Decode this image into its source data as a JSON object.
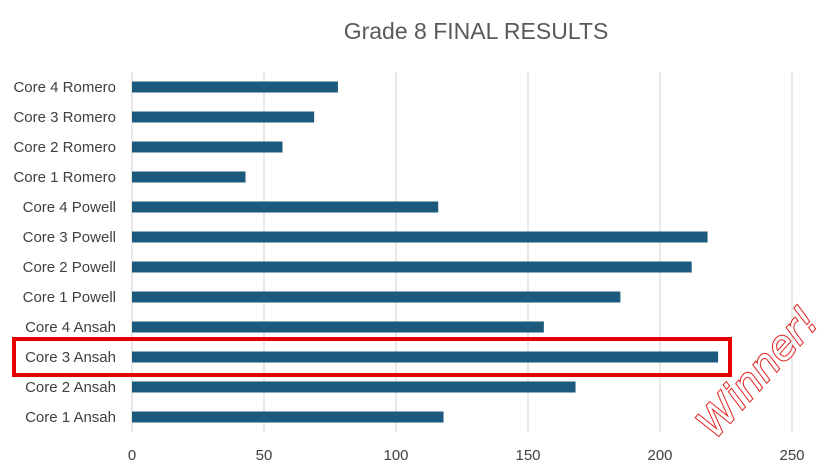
{
  "chart_data": {
    "type": "bar",
    "orientation": "horizontal",
    "title": "Grade 8 FINAL RESULTS",
    "xlim": [
      0,
      250
    ],
    "xticks": [
      0,
      50,
      100,
      150,
      200,
      250
    ],
    "grid": true,
    "categories": [
      "Core 4 Romero",
      "Core 3 Romero",
      "Core 2 Romero",
      "Core 1 Romero",
      "Core 4 Powell",
      "Core 3 Powell",
      "Core 2 Powell",
      "Core 1 Powell",
      "Core 4 Ansah",
      "Core 3 Ansah",
      "Core 2 Ansah",
      "Core 1 Ansah"
    ],
    "values": [
      78,
      69,
      57,
      43,
      116,
      218,
      212,
      185,
      156,
      222,
      168,
      118
    ],
    "bar_color": "#1b5a7c",
    "highlight": {
      "category": "Core 3 Ansah",
      "color": "#e60000"
    },
    "annotation": {
      "text": "Winner!",
      "color": "#e02020"
    }
  }
}
